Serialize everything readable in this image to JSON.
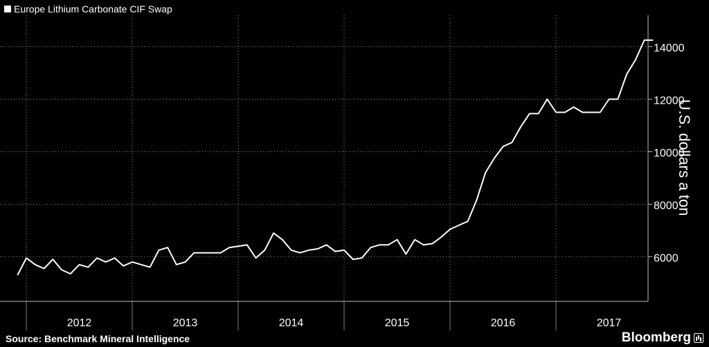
{
  "chart_data": {
    "type": "line",
    "legend": "Europe Lithium Carbonate CIF Swap",
    "ylabel": "U.S. dollars a ton",
    "source": "Source:  Benchmark Mineral Intelligence",
    "brand": "Bloomberg",
    "ylim": [
      4300,
      15200
    ],
    "yticks": [
      6000,
      8000,
      10000,
      12000,
      14000
    ],
    "grid": true,
    "legend_position": "top-left",
    "x_start_year": 2011.917,
    "x_step_months": 1,
    "year_labels": [
      "2012",
      "2013",
      "2014",
      "2015",
      "2016",
      "2017"
    ],
    "series": [
      {
        "name": "Europe Lithium Carbonate CIF Swap",
        "color": "#ffffff",
        "values": [
          5300,
          5950,
          5700,
          5550,
          5900,
          5500,
          5350,
          5700,
          5600,
          5950,
          5800,
          5950,
          5650,
          5800,
          5700,
          5600,
          6250,
          6350,
          5700,
          5800,
          6150,
          6150,
          6150,
          6150,
          6350,
          6400,
          6450,
          5950,
          6250,
          6900,
          6650,
          6250,
          6150,
          6250,
          6300,
          6450,
          6200,
          6250,
          5900,
          5950,
          6350,
          6450,
          6450,
          6650,
          6100,
          6650,
          6450,
          6500,
          6750,
          7050,
          7200,
          7350,
          8150,
          9200,
          9750,
          10200,
          10350,
          10950,
          11450,
          11450,
          12000,
          11500,
          11500,
          11700,
          11500,
          11500,
          11500,
          12000,
          12000,
          12950,
          13500,
          14250,
          14250
        ]
      }
    ]
  }
}
